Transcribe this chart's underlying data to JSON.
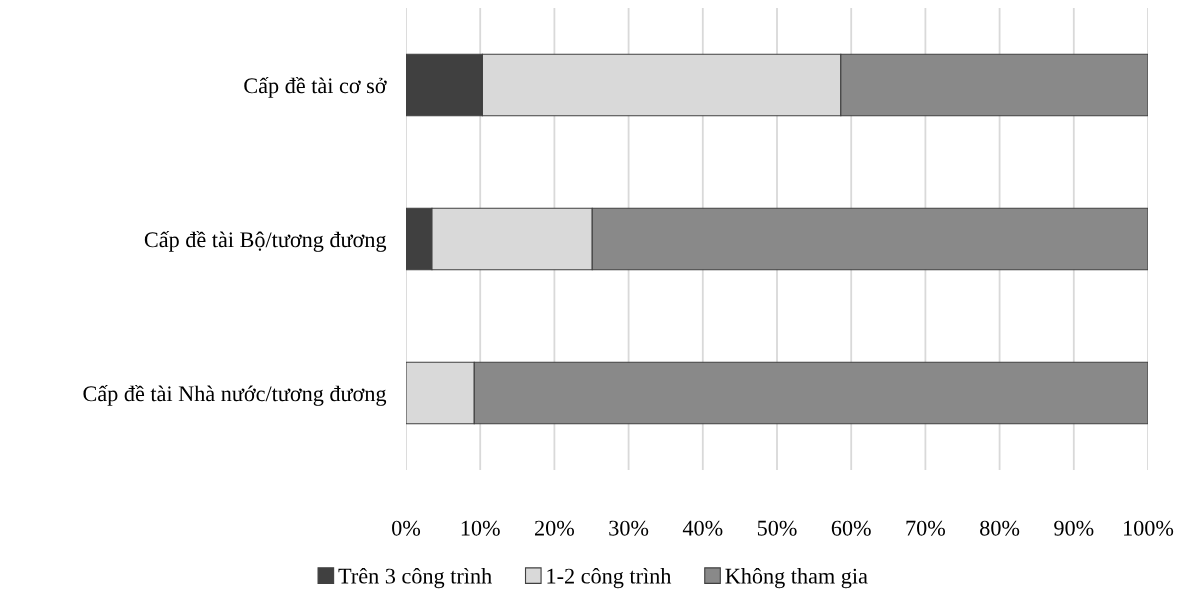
{
  "chart_data": {
    "type": "bar",
    "orientation": "horizontal",
    "stacked": true,
    "categories": [
      "Cấp đề tài cơ sở",
      "Cấp đề tài Bộ/tương đương",
      "Cấp đề tài Nhà nước/tương đương"
    ],
    "series": [
      {
        "name": "Trên 3 công trình",
        "color": "#404040",
        "values": [
          10.3,
          3.5,
          0
        ]
      },
      {
        "name": "1-2 công trình",
        "color": "#d9d9d9",
        "values": [
          48.3,
          21.6,
          9.2
        ]
      },
      {
        "name": "Không tham gia",
        "color": "#898989",
        "values": [
          41.4,
          74.9,
          90.8
        ]
      }
    ],
    "xlim": [
      0,
      100
    ],
    "xticks": [
      {
        "value": 0,
        "label": "0%"
      },
      {
        "value": 10,
        "label": "10%"
      },
      {
        "value": 20,
        "label": "20%"
      },
      {
        "value": 30,
        "label": "30%"
      },
      {
        "value": 40,
        "label": "40%"
      },
      {
        "value": 50,
        "label": "50%"
      },
      {
        "value": 60,
        "label": "60%"
      },
      {
        "value": 70,
        "label": "70%"
      },
      {
        "value": 80,
        "label": "80%"
      },
      {
        "value": 90,
        "label": "90%"
      },
      {
        "value": 100,
        "label": "100%"
      }
    ],
    "grid": "x",
    "legend": "bottom"
  }
}
